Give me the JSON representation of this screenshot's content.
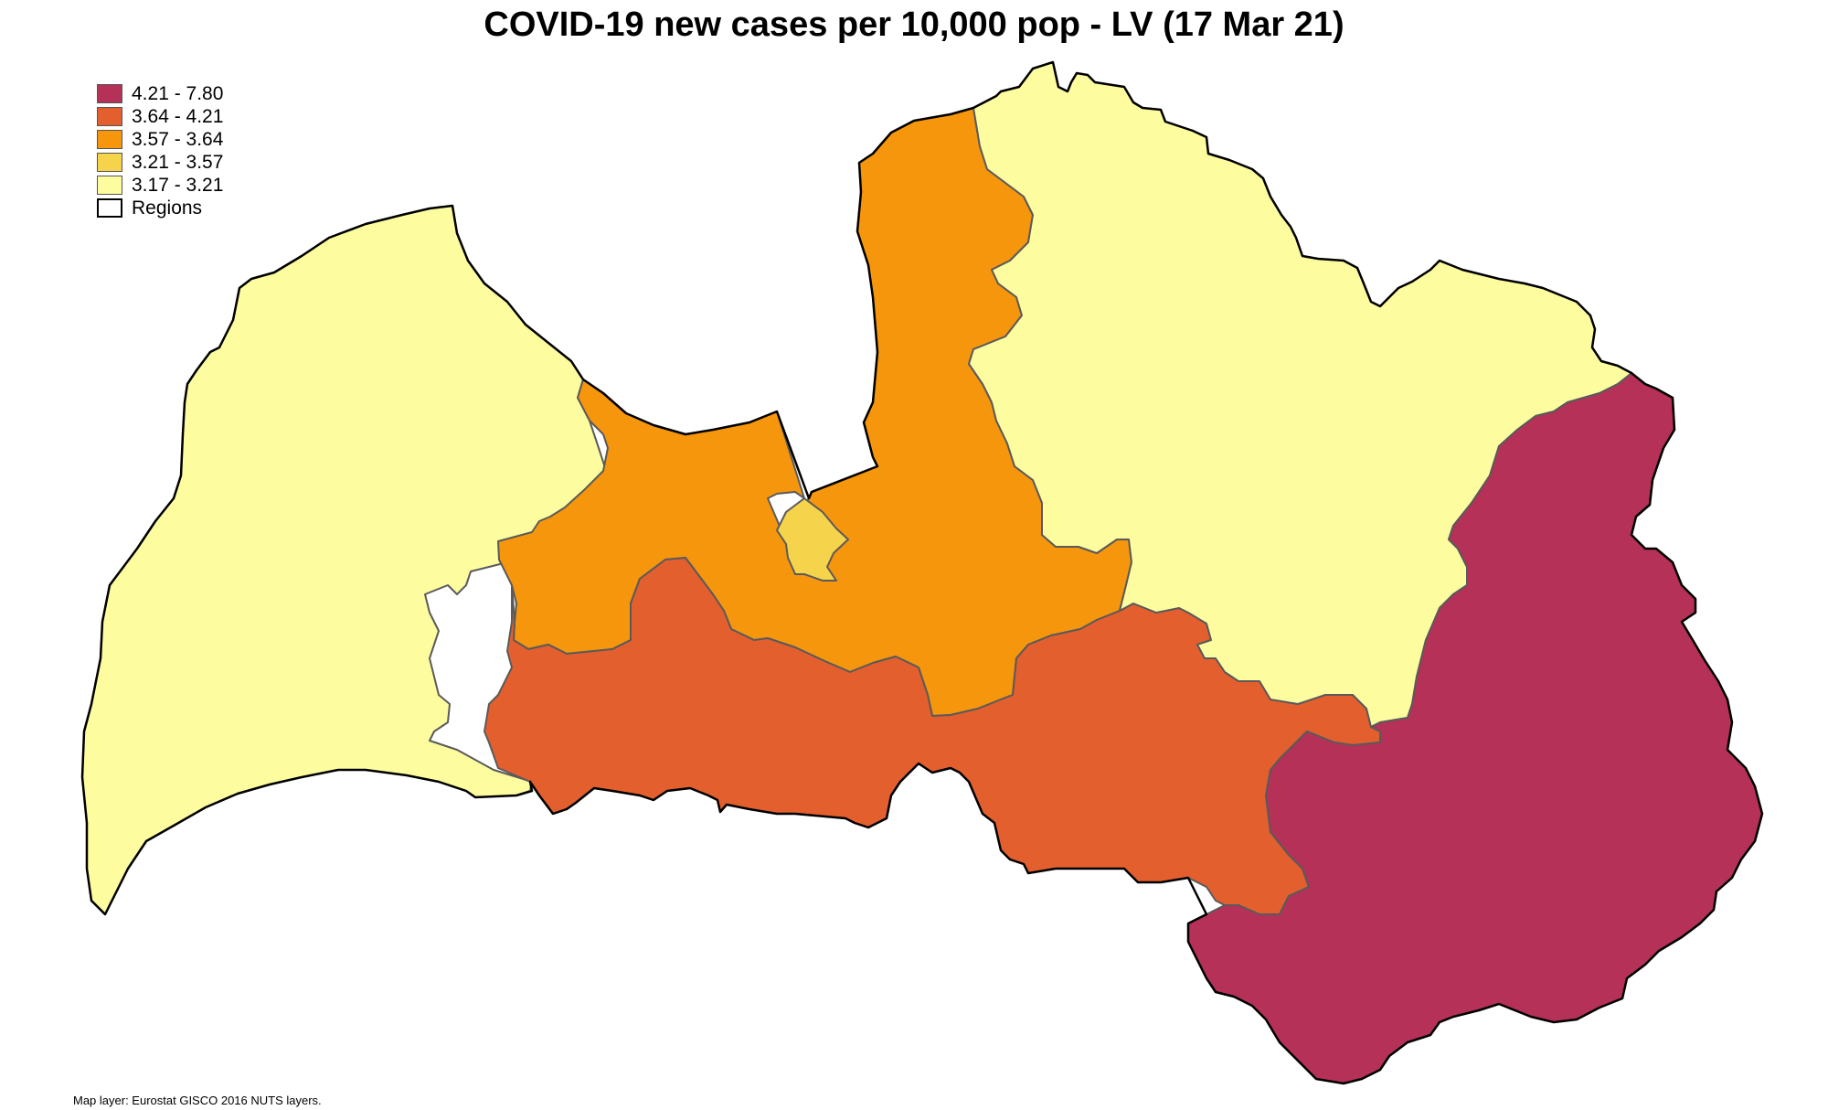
{
  "title": "COVID-19 new cases per 10,000 pop - LV (17 Mar 21)",
  "legend": [
    {
      "label": "4.21 - 7.80",
      "color": "#b53157"
    },
    {
      "label": "3.64 - 4.21",
      "color": "#e45f2e"
    },
    {
      "label": "3.57 - 3.64",
      "color": "#f6960d"
    },
    {
      "label": "3.21 - 3.57",
      "color": "#f5d34b"
    },
    {
      "label": "3.17 - 3.21",
      "color": "#fdfd9f"
    }
  ],
  "regions_label": "Regions",
  "source": "Map layer: Eurostat GISCO 2016 NUTS layers.",
  "map_regions": [
    {
      "name": "kurzeme",
      "class": "3.17 - 3.21",
      "color": "#fdfd9f"
    },
    {
      "name": "pieriga",
      "class": "3.57 - 3.64",
      "color": "#f6960d"
    },
    {
      "name": "riga",
      "class": "3.21 - 3.57",
      "color": "#f5d34b"
    },
    {
      "name": "zemgale",
      "class": "3.64 - 4.21",
      "color": "#e45f2e"
    },
    {
      "name": "vidzeme",
      "class": "3.17 - 3.21",
      "color": "#fdfd9f"
    },
    {
      "name": "latgale",
      "class": "4.21 - 7.80",
      "color": "#b53157"
    }
  ]
}
